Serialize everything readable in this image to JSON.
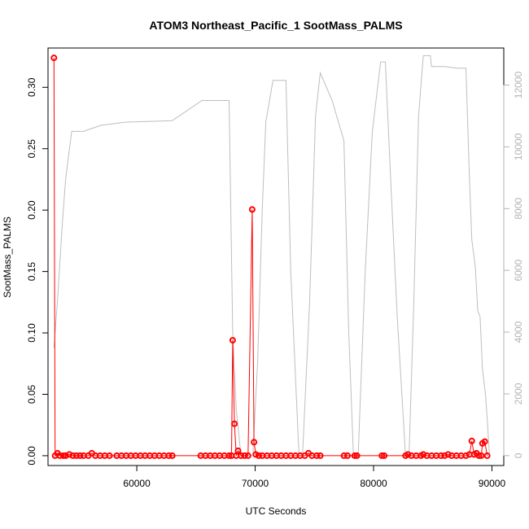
{
  "chart_data": {
    "type": "scatter",
    "title": "ATOM3 Northeast_Pacific_1 SootMass_PALMS",
    "xlabel": "UTC Seconds",
    "ylabel": "SootMass_PALMS",
    "xlim": [
      52500,
      91000
    ],
    "ylim": [
      -0.008,
      0.332
    ],
    "y2lim": [
      -320,
      13200
    ],
    "x_ticks": [
      60000,
      70000,
      80000,
      90000
    ],
    "y_ticks": [
      0.0,
      0.05,
      0.1,
      0.15,
      0.2,
      0.25,
      0.3
    ],
    "y_tick_labels": [
      "0.00",
      "0.05",
      "0.10",
      "0.15",
      "0.20",
      "0.25",
      "0.30"
    ],
    "y2_ticks": [
      0,
      2000,
      4000,
      6000,
      8000,
      10000,
      12000
    ],
    "colors": {
      "series": "#ff0000",
      "altitude": "#bebebe",
      "axis": "#000000",
      "right_axis": "#b3b3b3"
    },
    "series": [
      {
        "style": "red points with connecting line",
        "points": [
          [
            53000,
            0.324
          ],
          [
            53100,
            0.0
          ],
          [
            53300,
            0.002
          ],
          [
            53500,
            0.0
          ],
          [
            53800,
            0.0
          ],
          [
            54000,
            0.0
          ],
          [
            54300,
            0.001
          ],
          [
            54600,
            0.0
          ],
          [
            54900,
            0.0
          ],
          [
            55200,
            0.0
          ],
          [
            55500,
            0.0
          ],
          [
            55900,
            0.0
          ],
          [
            56200,
            0.002
          ],
          [
            56500,
            0.0
          ],
          [
            56900,
            0.0
          ],
          [
            57300,
            0.0
          ],
          [
            57700,
            0.0
          ],
          [
            58300,
            0.0
          ],
          [
            58700,
            0.0
          ],
          [
            59100,
            0.0
          ],
          [
            59500,
            0.0
          ],
          [
            59900,
            0.0
          ],
          [
            60300,
            0.0
          ],
          [
            60700,
            0.0
          ],
          [
            61100,
            0.0
          ],
          [
            61500,
            0.0
          ],
          [
            61900,
            0.0
          ],
          [
            62300,
            0.0
          ],
          [
            62700,
            0.0
          ],
          [
            63000,
            0.0
          ],
          [
            65400,
            0.0
          ],
          [
            65800,
            0.0
          ],
          [
            66200,
            0.0
          ],
          [
            66600,
            0.0
          ],
          [
            67000,
            0.0
          ],
          [
            67400,
            0.0
          ],
          [
            67800,
            0.0
          ],
          [
            68000,
            0.0
          ],
          [
            68100,
            0.094
          ],
          [
            68250,
            0.026
          ],
          [
            68400,
            0.0
          ],
          [
            68550,
            0.004
          ],
          [
            68800,
            0.0
          ],
          [
            69100,
            0.0
          ],
          [
            69400,
            0.0
          ],
          [
            69750,
            0.2005
          ],
          [
            69900,
            0.011
          ],
          [
            70050,
            0.001
          ],
          [
            70300,
            0.0
          ],
          [
            70600,
            0.0
          ],
          [
            71000,
            0.0
          ],
          [
            71400,
            0.0
          ],
          [
            71800,
            0.0
          ],
          [
            72200,
            0.0
          ],
          [
            72600,
            0.0
          ],
          [
            73000,
            0.0
          ],
          [
            73400,
            0.0
          ],
          [
            73800,
            0.0
          ],
          [
            74200,
            0.0
          ],
          [
            74500,
            0.002
          ],
          [
            74800,
            0.0
          ],
          [
            75200,
            0.0
          ],
          [
            75500,
            0.0
          ],
          [
            77500,
            0.0
          ],
          [
            77800,
            0.0
          ],
          [
            78400,
            0.0
          ],
          [
            78600,
            0.0
          ],
          [
            80700,
            0.0
          ],
          [
            80900,
            0.0
          ],
          [
            82700,
            0.0
          ],
          [
            82900,
            0.001
          ],
          [
            83200,
            0.0
          ],
          [
            83600,
            0.0
          ],
          [
            84000,
            0.0
          ],
          [
            84200,
            0.001
          ],
          [
            84500,
            0.0
          ],
          [
            84900,
            0.0
          ],
          [
            85300,
            0.0
          ],
          [
            85700,
            0.0
          ],
          [
            86000,
            0.0
          ],
          [
            86300,
            0.001
          ],
          [
            86600,
            0.0
          ],
          [
            87000,
            0.0
          ],
          [
            87400,
            0.0
          ],
          [
            87800,
            0.0
          ],
          [
            88100,
            0.001
          ],
          [
            88300,
            0.012
          ],
          [
            88500,
            0.001
          ],
          [
            88700,
            0.002
          ],
          [
            88900,
            0.0
          ],
          [
            89100,
            0.0
          ],
          [
            89200,
            0.01
          ],
          [
            89400,
            0.0115
          ],
          [
            89600,
            0.0
          ]
        ]
      },
      {
        "axis": "right",
        "style": "grey line",
        "points": [
          [
            53000,
            3500
          ],
          [
            53300,
            5000
          ],
          [
            53700,
            7500
          ],
          [
            54000,
            9000
          ],
          [
            54500,
            10500
          ],
          [
            55500,
            10500
          ],
          [
            57000,
            10700
          ],
          [
            59000,
            10800
          ],
          [
            63000,
            10850
          ],
          [
            65500,
            11500
          ],
          [
            66500,
            11500
          ],
          [
            67000,
            11500
          ],
          [
            67800,
            11500
          ],
          [
            68100,
            4000
          ],
          [
            68400,
            1500
          ],
          [
            68800,
            0
          ],
          [
            69200,
            0
          ],
          [
            69800,
            0
          ],
          [
            70200,
            3000
          ],
          [
            70600,
            8000
          ],
          [
            70900,
            10800
          ],
          [
            71500,
            12150
          ],
          [
            72600,
            12150
          ],
          [
            73000,
            6000
          ],
          [
            73700,
            0
          ],
          [
            74000,
            0
          ],
          [
            74600,
            5000
          ],
          [
            75100,
            11000
          ],
          [
            75500,
            12400
          ],
          [
            76500,
            11500
          ],
          [
            77500,
            10200
          ],
          [
            77900,
            4000
          ],
          [
            78300,
            0
          ],
          [
            78700,
            0
          ],
          [
            79300,
            6000
          ],
          [
            79900,
            10500
          ],
          [
            80600,
            12750
          ],
          [
            81000,
            12750
          ],
          [
            81500,
            8500
          ],
          [
            82000,
            4500
          ],
          [
            82700,
            0
          ],
          [
            83000,
            0
          ],
          [
            83400,
            5000
          ],
          [
            83800,
            11000
          ],
          [
            84200,
            12950
          ],
          [
            84800,
            12950
          ],
          [
            84900,
            12600
          ],
          [
            86000,
            12600
          ],
          [
            87000,
            12550
          ],
          [
            87800,
            12550
          ],
          [
            88100,
            9000
          ],
          [
            88300,
            7000
          ],
          [
            88600,
            6100
          ],
          [
            88800,
            4700
          ],
          [
            89000,
            4500
          ],
          [
            89200,
            2800
          ],
          [
            89450,
            2000
          ],
          [
            89600,
            1200
          ],
          [
            89800,
            0
          ]
        ]
      }
    ]
  }
}
